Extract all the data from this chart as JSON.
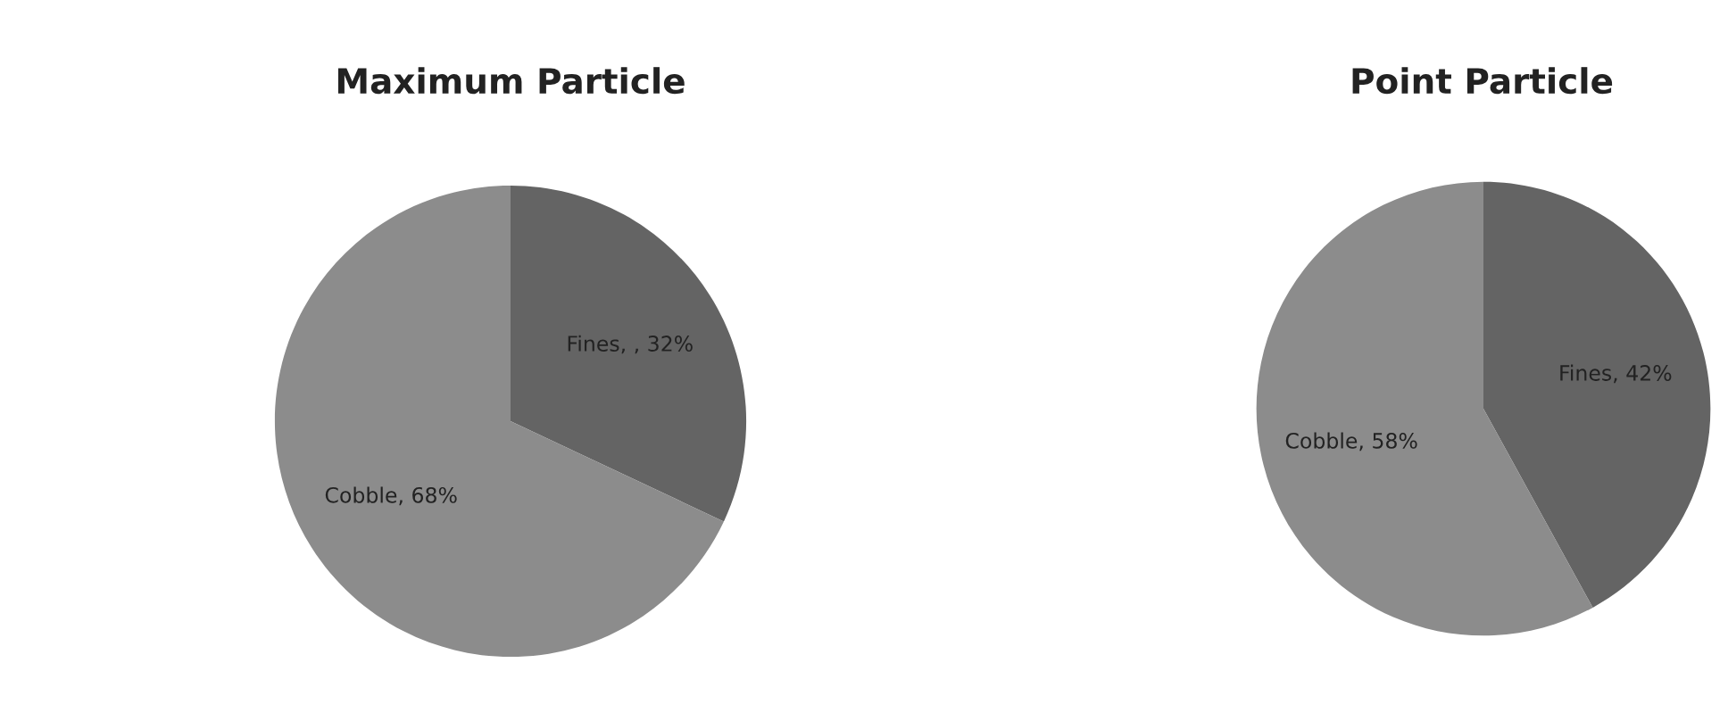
{
  "chart_data": [
    {
      "type": "pie",
      "title": "Maximum Particle",
      "categories": [
        "Fines",
        "Cobble"
      ],
      "values": [
        32,
        68
      ],
      "colors": [
        "#646464",
        "#8c8c8c"
      ],
      "value_labels": [
        ", 32%",
        "68%"
      ]
    },
    {
      "type": "pie",
      "title": "Point Particle",
      "categories": [
        "Fines",
        "Cobble"
      ],
      "values": [
        42,
        58
      ],
      "colors": [
        "#646464",
        "#8c8c8c"
      ],
      "value_labels": [
        "42%",
        "58%"
      ]
    }
  ]
}
